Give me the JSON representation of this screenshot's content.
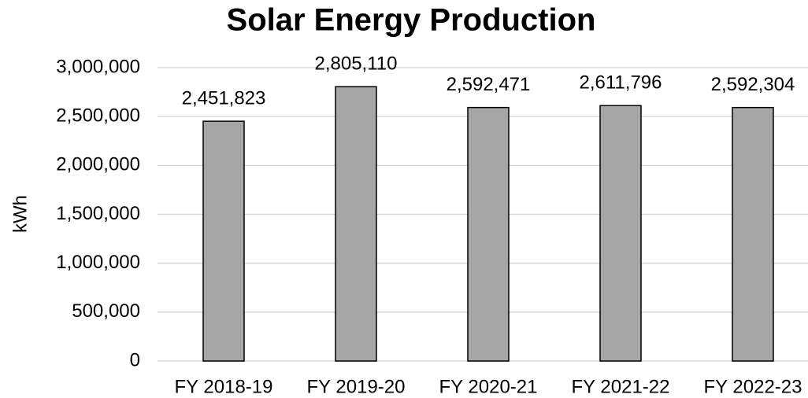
{
  "chart_data": {
    "type": "bar",
    "title": "Solar Energy Production",
    "y_label": "kWh",
    "categories": [
      "FY 2018-19",
      "FY 2019-20",
      "FY 2020-21",
      "FY 2021-22",
      "FY 2022-23"
    ],
    "values": [
      2451823,
      2805110,
      2592471,
      2611796,
      2592304
    ],
    "value_labels": [
      "2,451,823",
      "2,805,110",
      "2,592,471",
      "2,611,796",
      "2,592,304"
    ],
    "color": "#a6a6a6",
    "ylim": [
      0,
      3000000
    ],
    "yticks": [
      0,
      {
        "value": 500000,
        "label": "500,000"
      },
      {
        "value": 1000000,
        "label": "1,000,000"
      },
      {
        "value": 1500000,
        "label": "1,500,000"
      },
      {
        "value": 2000000,
        "label": "2,000,000"
      },
      {
        "value": 2500000,
        "label": "2,500,000"
      },
      {
        "value": 3000000,
        "label": "3,000,000"
      }
    ],
    "grid": true
  }
}
